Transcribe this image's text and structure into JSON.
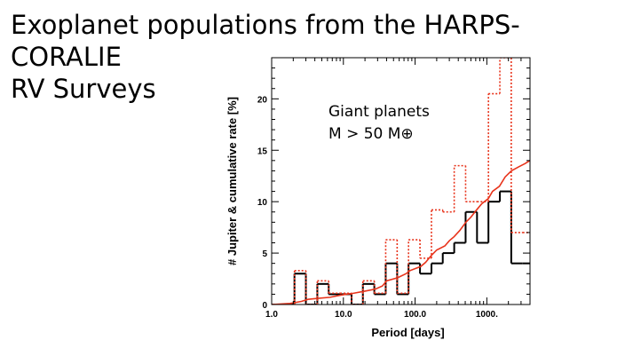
{
  "slide": {
    "title": "Exoplanet populations from the HARPS-CORALIE\nRV Surveys"
  },
  "chart_data": {
    "type": "line",
    "xscale": "log",
    "xlim": [
      1,
      4000
    ],
    "ylim": [
      0,
      24
    ],
    "xlabel": "Period   [days]",
    "ylabel": "# Jupiter  &  cumulative rate  [%]",
    "x_ticks": [
      {
        "value": 1,
        "label": "1.0"
      },
      {
        "value": 10,
        "label": "10.0"
      },
      {
        "value": 100,
        "label": "100.0"
      },
      {
        "value": 1000,
        "label": "1000."
      }
    ],
    "y_ticks": [
      {
        "value": 0,
        "label": "0"
      },
      {
        "value": 5,
        "label": "5"
      },
      {
        "value": 10,
        "label": "10"
      },
      {
        "value": 15,
        "label": "15"
      },
      {
        "value": 20,
        "label": "20"
      }
    ],
    "annotation": [
      "Giant planets",
      "M > 50 M⊕"
    ],
    "bin_edges": [
      1,
      1.44,
      2.08,
      3.0,
      4.33,
      6.24,
      9.0,
      13.0,
      18.7,
      27.0,
      38.9,
      56.2,
      81.0,
      117,
      169,
      243,
      351,
      506,
      730,
      1053,
      1520,
      2190,
      3160,
      4560
    ],
    "series": [
      {
        "style": "solid-black-step",
        "color": "#000000",
        "values": [
          0,
          0,
          3,
          0,
          2,
          1,
          1,
          0,
          2,
          1,
          4,
          1,
          4,
          3,
          4,
          5,
          6,
          9,
          6,
          10,
          11,
          4,
          4
        ]
      },
      {
        "style": "dotted-step",
        "color": "#e8341c",
        "values": [
          0,
          0,
          3.3,
          0,
          2.3,
          1.1,
          1.1,
          0,
          2.3,
          1.1,
          6.3,
          1.1,
          6.3,
          4.5,
          9.2,
          9,
          13.5,
          10,
          10,
          20.5,
          25,
          7,
          7
        ]
      },
      {
        "style": "cumulative-red",
        "color": "#e8341c",
        "x": [
          1.0,
          1.8,
          2.6,
          3.2,
          4.4,
          6.5,
          9.0,
          11,
          14,
          20,
          28,
          35,
          40,
          57,
          75,
          85,
          120,
          140,
          170,
          200,
          260,
          300,
          350,
          420,
          510,
          600,
          720,
          850,
          1050,
          1200,
          1500,
          1800,
          2200,
          2800,
          3400,
          4000
        ],
        "values": [
          0,
          0.1,
          0.3,
          0.5,
          0.6,
          0.7,
          0.9,
          1.0,
          1.1,
          1.3,
          1.5,
          1.8,
          2.3,
          2.6,
          3.0,
          3.3,
          3.7,
          4.1,
          4.8,
          5.3,
          5.7,
          6.2,
          6.6,
          7.2,
          8.0,
          8.5,
          9.2,
          9.8,
          10.3,
          11.0,
          11.5,
          12.4,
          13.0,
          13.4,
          13.7,
          14.0
        ]
      }
    ]
  }
}
